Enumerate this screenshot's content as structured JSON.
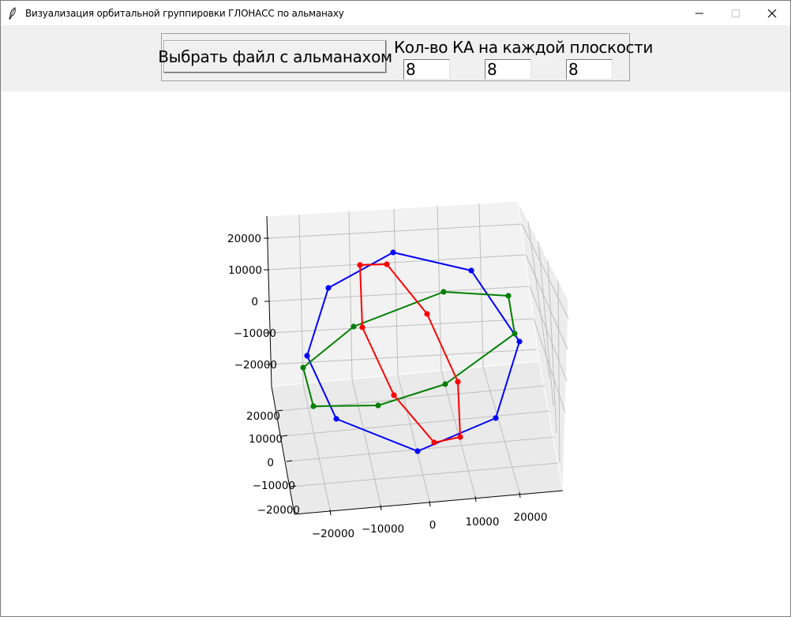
{
  "window": {
    "title": "Визуализация орбитальной группировки ГЛОНАСС по альманаху",
    "icon": "feather-icon",
    "controls": [
      "minimize-icon",
      "maximize-icon",
      "close-icon"
    ]
  },
  "toolbar": {
    "choose_file_label": "Выбрать файл с альманахом",
    "count_label": "Кол-во КА на каждой плоскости",
    "plane_counts": [
      "8",
      "8",
      "8"
    ]
  },
  "colors": {
    "plane_1": "#0000ff",
    "plane_2": "#008000",
    "plane_3": "#ff0000",
    "toolbar_bg": "#f0f0f0",
    "pane_bg": "#f2f2f2",
    "grid": "#bebebe"
  },
  "chart_data": {
    "type": "scatter3d",
    "title": "",
    "xlabel": "",
    "ylabel": "",
    "zlabel": "",
    "x_ticks": [
      "−20000",
      "−10000",
      "0",
      "10000",
      "20000"
    ],
    "y_ticks": [
      "20000",
      "10000",
      "0",
      "−10000",
      "−20000"
    ],
    "z_ticks": [
      "20000",
      "10000",
      "0",
      "−10000",
      "−20000"
    ],
    "grid": true,
    "legend": "none",
    "series": [
      {
        "color": "#0000ff",
        "closed": true,
        "points": [
          [
            497,
            319
          ],
          [
            596,
            342
          ],
          [
            657,
            432
          ],
          [
            627,
            529
          ],
          [
            528,
            571
          ],
          [
            425,
            530
          ],
          [
            388,
            450
          ],
          [
            415,
            364
          ]
        ]
      },
      {
        "color": "#008000",
        "closed": true,
        "points": [
          [
            561,
            369
          ],
          [
            643,
            374
          ],
          [
            651,
            422
          ],
          [
            563,
            486
          ],
          [
            478,
            513
          ],
          [
            396,
            514
          ],
          [
            383,
            465
          ],
          [
            447,
            413
          ]
        ]
      },
      {
        "color": "#ff0000",
        "closed": false,
        "points": [
          [
            455,
            335
          ],
          [
            489,
            334
          ],
          [
            540,
            397
          ],
          [
            579,
            483
          ],
          [
            582,
            553
          ],
          [
            549,
            560
          ],
          [
            498,
            500
          ],
          [
            458,
            414
          ],
          [
            455,
            335
          ]
        ]
      }
    ]
  }
}
